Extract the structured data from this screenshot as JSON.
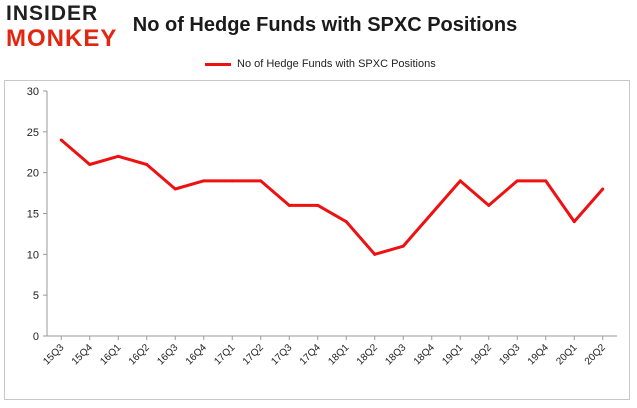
{
  "logo": {
    "line1": "INSIDER",
    "line2": "MONKEY"
  },
  "chart_data": {
    "type": "line",
    "title": "No of Hedge Funds with SPXC Positions",
    "xlabel": "",
    "ylabel": "",
    "categories": [
      "15Q3",
      "15Q4",
      "16Q1",
      "16Q2",
      "16Q3",
      "16Q4",
      "17Q1",
      "17Q2",
      "17Q3",
      "17Q4",
      "18Q1",
      "18Q2",
      "18Q3",
      "18Q4",
      "19Q1",
      "19Q2",
      "19Q3",
      "19Q4",
      "20Q1",
      "20Q2"
    ],
    "series": [
      {
        "name": "No of Hedge Funds with SPXC Positions",
        "color": "#ee1111",
        "values": [
          24,
          21,
          22,
          21,
          18,
          19,
          19,
          19,
          16,
          16,
          14,
          10,
          11,
          15,
          19,
          16,
          19,
          19,
          14,
          18
        ]
      }
    ],
    "ylim": [
      0,
      30
    ],
    "yticks": [
      0,
      5,
      10,
      15,
      20,
      25,
      30
    ],
    "grid": false,
    "legend": "top-center"
  }
}
